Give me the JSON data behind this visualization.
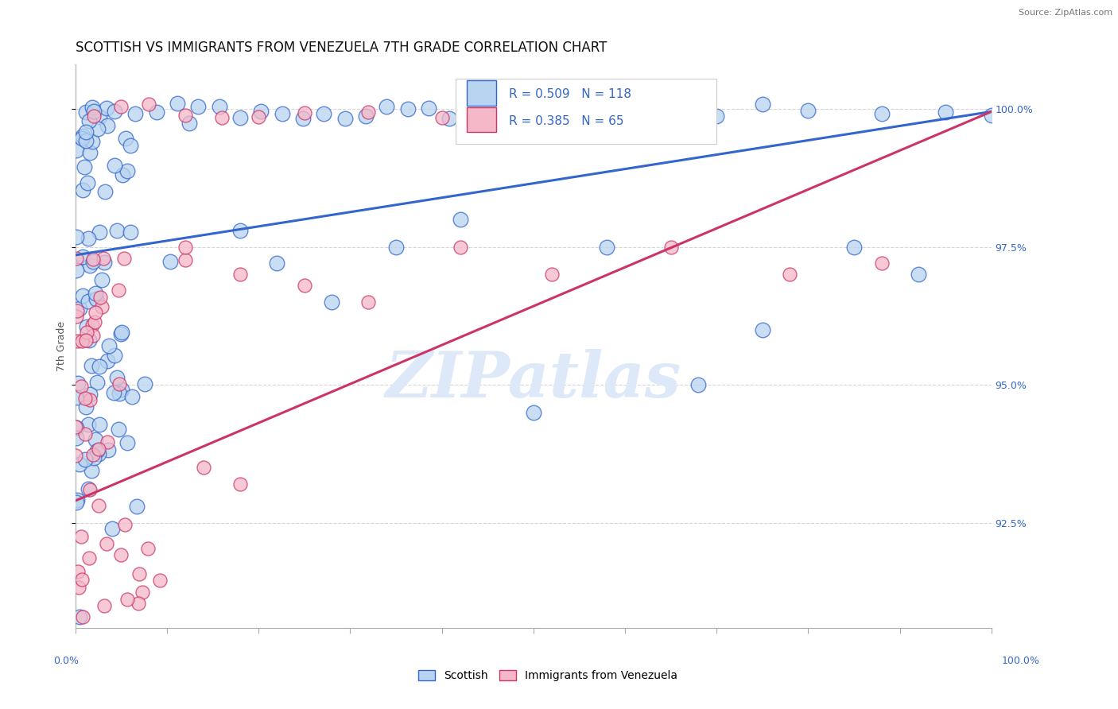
{
  "title": "SCOTTISH VS IMMIGRANTS FROM VENEZUELA 7TH GRADE CORRELATION CHART",
  "source_text": "Source: ZipAtlas.com",
  "ylabel": "7th Grade",
  "y_tick_labels": [
    "92.5%",
    "95.0%",
    "97.5%",
    "100.0%"
  ],
  "y_tick_values": [
    0.925,
    0.95,
    0.975,
    1.0
  ],
  "x_lim": [
    0.0,
    1.0
  ],
  "y_lim": [
    0.906,
    1.008
  ],
  "scatter_color_1": "#b8d4f0",
  "scatter_color_2": "#f5b8c8",
  "line_color_1": "#3366cc",
  "line_color_2": "#cc3366",
  "watermark_text": "ZIPatlas",
  "watermark_color": "#dde8f8",
  "grid_color": "#cccccc",
  "bg_color": "#ffffff",
  "title_fontsize": 12,
  "axis_label_fontsize": 9,
  "tick_fontsize": 9,
  "legend_fontsize": 11,
  "blue_line_x0": 0.0,
  "blue_line_y0": 0.9735,
  "blue_line_x1": 1.0,
  "blue_line_y1": 0.9995,
  "pink_line_x0": 0.0,
  "pink_line_y0": 0.929,
  "pink_line_x1": 1.0,
  "pink_line_y1": 0.9995
}
